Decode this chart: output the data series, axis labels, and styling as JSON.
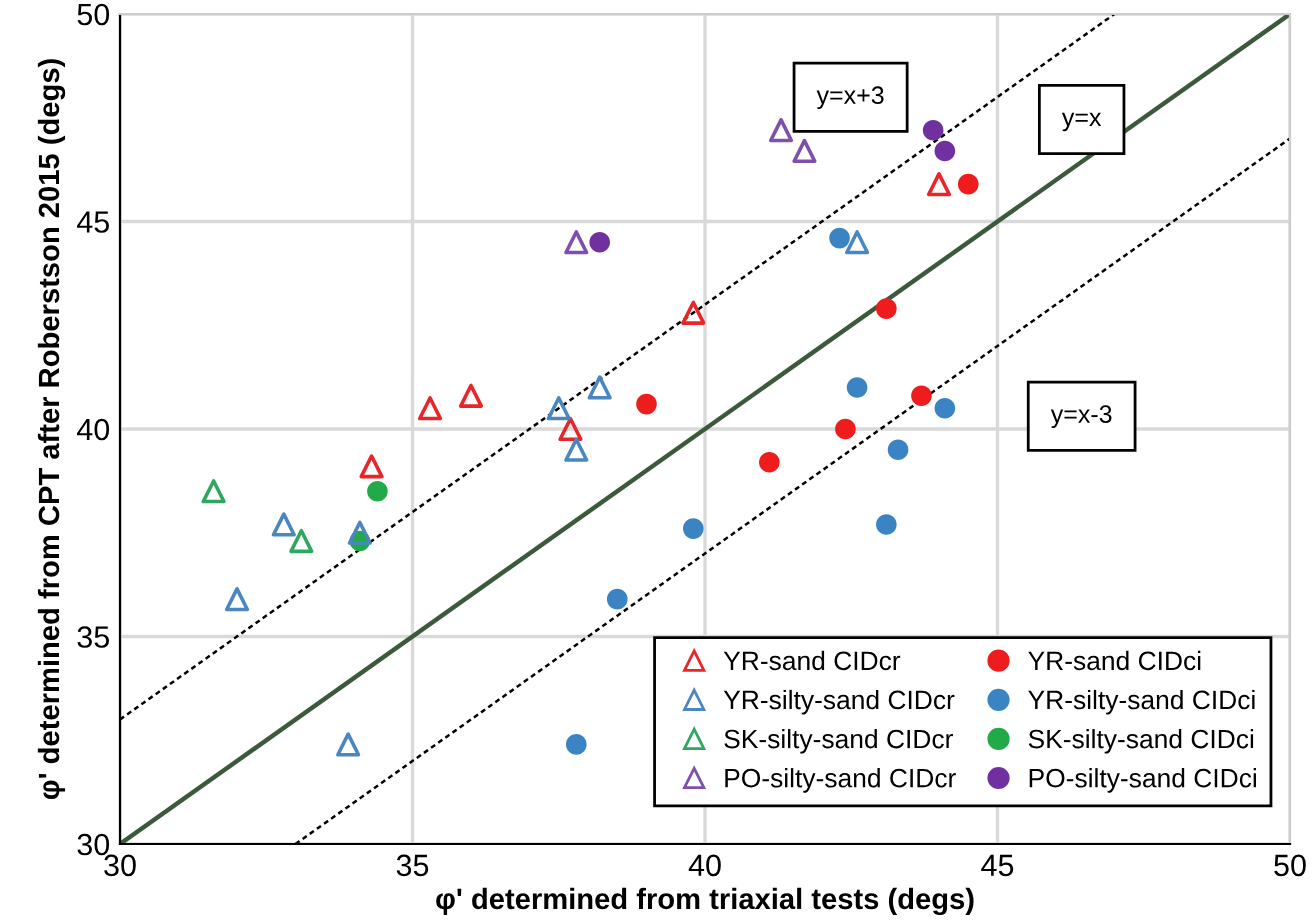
{
  "chart_data": {
    "type": "scatter",
    "xlabel": "φ' determined from triaxial tests (degs)",
    "ylabel": "φ' determined from CPT after Roberstson 2015 (degs)",
    "xlim": [
      30,
      50
    ],
    "ylim": [
      30,
      50
    ],
    "xticks": [
      30,
      35,
      40,
      45,
      50
    ],
    "yticks": [
      30,
      35,
      40,
      45,
      50
    ],
    "grid": true,
    "legend": "bottom right",
    "series": [
      {
        "name": "YR-sand CIDcr",
        "color": "#e8262a",
        "marker": "triangle",
        "x": [
          34.3,
          35.3,
          36.0,
          37.7,
          39.8,
          44.0
        ],
        "values": [
          39.1,
          40.5,
          40.8,
          40.0,
          42.8,
          45.9
        ]
      },
      {
        "name": "YR-sand CIDci",
        "color": "#ee1c1c",
        "marker": "circle",
        "x": [
          44.5,
          43.1,
          43.7,
          42.4,
          41.1,
          39.0
        ],
        "values": [
          45.9,
          42.9,
          40.8,
          40.0,
          39.2,
          40.6
        ]
      },
      {
        "name": "YR-silty-sand CIDcr",
        "color": "#4a86c0",
        "marker": "triangle",
        "x": [
          42.6,
          38.2,
          37.5,
          37.8,
          32.8,
          34.1,
          32.0,
          33.9
        ],
        "values": [
          44.5,
          41.0,
          40.5,
          39.5,
          37.7,
          37.5,
          35.9,
          32.4
        ]
      },
      {
        "name": "YR-silty-sand CIDci",
        "color": "#3a84c4",
        "marker": "circle",
        "x": [
          42.3,
          42.6,
          44.1,
          43.3,
          43.1,
          39.8,
          38.5,
          37.8
        ],
        "values": [
          44.6,
          41.0,
          40.5,
          39.5,
          37.7,
          37.6,
          35.9,
          32.4
        ]
      },
      {
        "name": "SK-silty-sand CIDcr",
        "color": "#2ea860",
        "marker": "triangle",
        "x": [
          31.6,
          33.1
        ],
        "values": [
          38.5,
          37.3
        ]
      },
      {
        "name": "SK-silty-sand CIDci",
        "color": "#22aa48",
        "marker": "circle",
        "x": [
          34.4,
          34.1
        ],
        "values": [
          38.5,
          37.3
        ]
      },
      {
        "name": "PO-silty-sand CIDcr",
        "color": "#7f4fae",
        "marker": "triangle",
        "x": [
          37.8,
          41.3,
          41.7
        ],
        "values": [
          44.5,
          47.2,
          46.7
        ]
      },
      {
        "name": "PO-silty-sand CIDci",
        "color": "#7030a0",
        "marker": "circle",
        "x": [
          38.2,
          43.9,
          44.1
        ],
        "values": [
          44.5,
          47.2,
          46.7
        ]
      },
      {
        "name": "y=x+3",
        "type": "line",
        "color": "#000000",
        "line_style": "dotted",
        "x": [
          30,
          47
        ],
        "values": [
          33,
          50
        ]
      },
      {
        "name": "y=x",
        "type": "line",
        "color": "#3b5a3b",
        "line_style": "solid",
        "x": [
          30,
          50
        ],
        "values": [
          30,
          50
        ]
      },
      {
        "name": "y=x-3",
        "type": "line",
        "color": "#000000",
        "line_style": "dotted",
        "x": [
          33,
          50
        ],
        "values": [
          30,
          47
        ]
      }
    ]
  }
}
